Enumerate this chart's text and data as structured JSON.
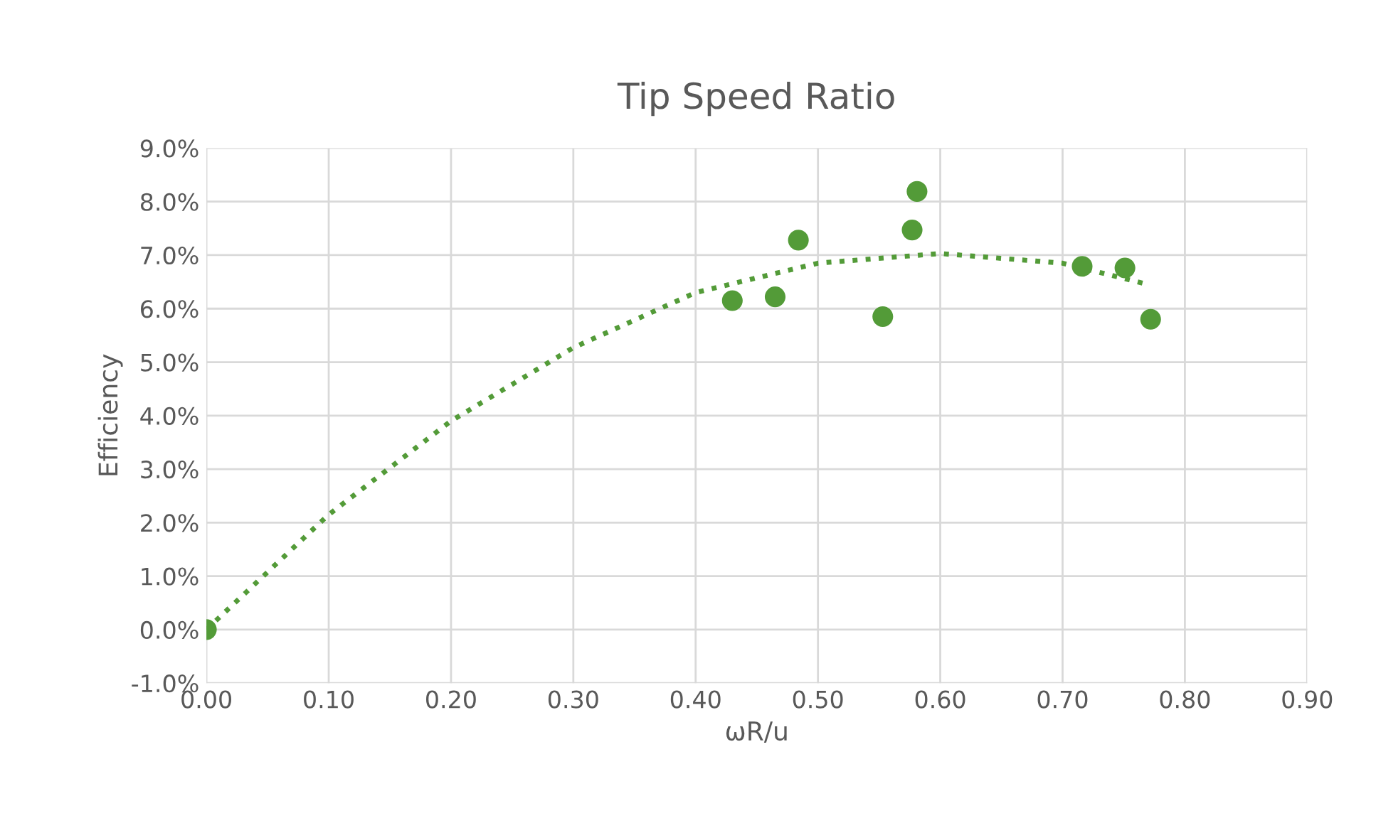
{
  "chart_data": {
    "type": "scatter",
    "title": "Tip Speed Ratio",
    "xlabel": "ωR/u",
    "ylabel": "Efficiency",
    "series": [
      {
        "color": "#539b38",
        "marker": "circle",
        "x": [
          0.0,
          0.43,
          0.465,
          0.484,
          0.553,
          0.577,
          0.581,
          0.716,
          0.751,
          0.772
        ],
        "values": [
          0.0,
          6.15,
          6.22,
          7.28,
          5.85,
          7.47,
          8.19,
          6.79,
          6.76,
          5.8
        ]
      },
      {
        "type": "line",
        "color": "#539b38",
        "line_style": "dotted",
        "marker": "none",
        "x": [
          0.0,
          0.1,
          0.2,
          0.3,
          0.4,
          0.5,
          0.6,
          0.7,
          0.77
        ],
        "values": [
          0.0,
          2.15,
          3.9,
          5.27,
          6.3,
          6.85,
          7.03,
          6.85,
          6.45
        ]
      }
    ],
    "xlim": [
      0,
      0.9
    ],
    "xticks": [
      {
        "value": 0,
        "label": "0.00"
      },
      {
        "value": 0.1,
        "label": "0.10"
      },
      {
        "value": 0.2,
        "label": "0.20"
      },
      {
        "value": 0.3,
        "label": "0.30"
      },
      {
        "value": 0.4,
        "label": "0.40"
      },
      {
        "value": 0.5,
        "label": "0.50"
      },
      {
        "value": 0.6,
        "label": "0.60"
      },
      {
        "value": 0.7,
        "label": "0.70"
      },
      {
        "value": 0.8,
        "label": "0.80"
      },
      {
        "value": 0.9,
        "label": "0.90"
      }
    ],
    "ylim": [
      -1,
      9
    ],
    "yticks": [
      {
        "value": -1,
        "label": "-1.0%"
      },
      {
        "value": 0,
        "label": "0.0%"
      },
      {
        "value": 1,
        "label": "1.0%"
      },
      {
        "value": 2,
        "label": "2.0%"
      },
      {
        "value": 3,
        "label": "3.0%"
      },
      {
        "value": 4,
        "label": "4.0%"
      },
      {
        "value": 5,
        "label": "5.0%"
      },
      {
        "value": 6,
        "label": "6.0%"
      },
      {
        "value": 7,
        "label": "7.0%"
      },
      {
        "value": 8,
        "label": "8.0%"
      },
      {
        "value": 9,
        "label": "9.0%"
      }
    ],
    "grid": true,
    "legend": false
  }
}
